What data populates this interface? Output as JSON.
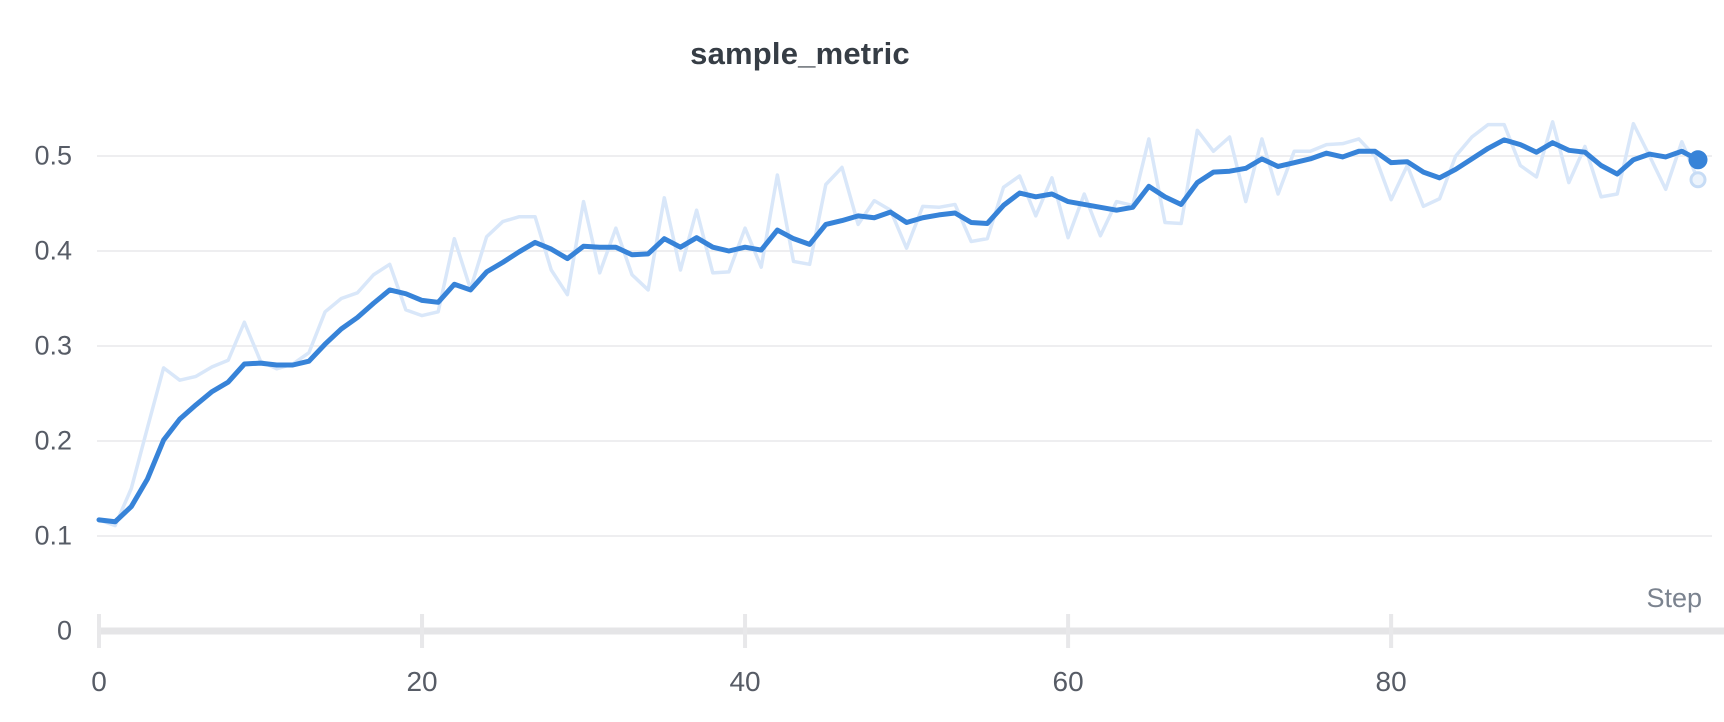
{
  "header": {
    "title": "sample_metric"
  },
  "axes": {
    "x_label": "Step",
    "x_tick_labels": [
      "0",
      "20",
      "40",
      "60",
      "80"
    ],
    "y_tick_labels": [
      "0",
      "0.1",
      "0.2",
      "0.3",
      "0.4",
      "0.5"
    ]
  },
  "colors": {
    "smoothed_line": "#3783d8",
    "raw_line": "#d9e7f9",
    "end_dot": "#3783d8",
    "end_ring_stroke": "#c7dcf5",
    "end_ring_fill": "#edf4fc",
    "gridline": "#e8e9eb",
    "axis_baseline": "#e5e5e7",
    "tick_mark": "#e8e8ea"
  },
  "chart_data": {
    "type": "line",
    "title": "sample_metric",
    "xlabel": "Step",
    "ylabel": "",
    "x_start": 0,
    "x_step_size": 1,
    "xlim": [
      0,
      99
    ],
    "ylim": [
      0,
      0.56
    ],
    "x_tick_values": [
      0,
      20,
      40,
      60,
      80
    ],
    "y_tick_values": [
      0,
      0.1,
      0.2,
      0.3,
      0.4,
      0.5
    ],
    "grid": "horizontal-only",
    "legend_position": "none",
    "series": [
      {
        "name": "raw",
        "style": "faint",
        "values": [
          0.117,
          0.111,
          0.15,
          0.214,
          0.277,
          0.264,
          0.268,
          0.278,
          0.285,
          0.325,
          0.284,
          0.276,
          0.281,
          0.293,
          0.336,
          0.35,
          0.356,
          0.375,
          0.386,
          0.338,
          0.332,
          0.336,
          0.413,
          0.36,
          0.415,
          0.431,
          0.436,
          0.436,
          0.38,
          0.354,
          0.452,
          0.377,
          0.424,
          0.375,
          0.359,
          0.456,
          0.38,
          0.443,
          0.377,
          0.378,
          0.424,
          0.383,
          0.48,
          0.389,
          0.386,
          0.47,
          0.488,
          0.428,
          0.453,
          0.443,
          0.403,
          0.447,
          0.446,
          0.449,
          0.41,
          0.413,
          0.467,
          0.479,
          0.437,
          0.477,
          0.414,
          0.46,
          0.416,
          0.452,
          0.448,
          0.518,
          0.43,
          0.429,
          0.527,
          0.505,
          0.52,
          0.452,
          0.518,
          0.46,
          0.505,
          0.505,
          0.512,
          0.513,
          0.518,
          0.5,
          0.454,
          0.49,
          0.447,
          0.455,
          0.5,
          0.52,
          0.533,
          0.533,
          0.49,
          0.478,
          0.536,
          0.472,
          0.51,
          0.457,
          0.46,
          0.534,
          0.5,
          0.465,
          0.515,
          0.475
        ]
      },
      {
        "name": "smoothed",
        "style": "bold",
        "values": [
          0.117,
          0.115,
          0.131,
          0.16,
          0.201,
          0.223,
          0.238,
          0.252,
          0.262,
          0.281,
          0.282,
          0.28,
          0.28,
          0.284,
          0.302,
          0.318,
          0.33,
          0.345,
          0.359,
          0.355,
          0.348,
          0.346,
          0.365,
          0.359,
          0.378,
          0.388,
          0.399,
          0.409,
          0.402,
          0.392,
          0.405,
          0.404,
          0.404,
          0.396,
          0.397,
          0.413,
          0.404,
          0.414,
          0.404,
          0.4,
          0.404,
          0.401,
          0.422,
          0.413,
          0.407,
          0.428,
          0.432,
          0.437,
          0.435,
          0.441,
          0.43,
          0.435,
          0.438,
          0.44,
          0.43,
          0.429,
          0.448,
          0.461,
          0.457,
          0.46,
          0.452,
          0.449,
          0.446,
          0.443,
          0.446,
          0.468,
          0.457,
          0.449,
          0.472,
          0.483,
          0.484,
          0.487,
          0.497,
          0.489,
          0.493,
          0.497,
          0.503,
          0.499,
          0.505,
          0.505,
          0.493,
          0.494,
          0.483,
          0.477,
          0.486,
          0.497,
          0.508,
          0.517,
          0.512,
          0.504,
          0.514,
          0.506,
          0.504,
          0.49,
          0.481,
          0.496,
          0.502,
          0.499,
          0.505,
          0.496
        ]
      }
    ],
    "final_values": {
      "smoothed": 0.496,
      "raw": 0.475
    }
  }
}
